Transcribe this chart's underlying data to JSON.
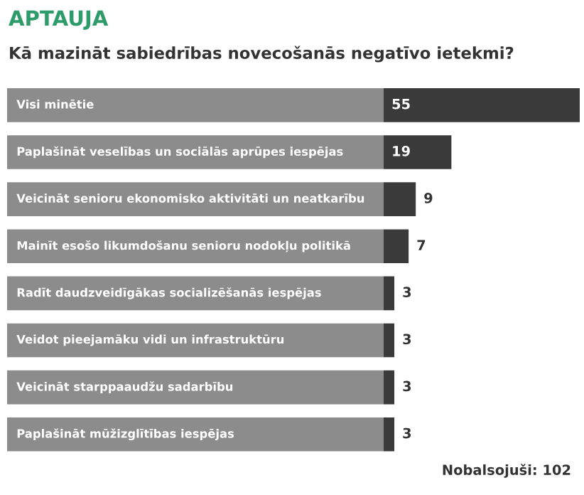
{
  "chart_data": {
    "type": "bar",
    "orientation": "horizontal",
    "title": "APTAUJA",
    "subtitle": "Kā mazināt sabiedrības novecošanās negatīvo ietekmi?",
    "categories": [
      "Visi minētie",
      "Paplašināt veselības un sociālās aprūpes iespējas",
      "Veicināt senioru ekonomisko aktivitāti un neatkarību",
      "Mainīt esošo likumdošanu senioru nodokļu politikā",
      "Radīt daudzveidīgākas socializēšanās iespējas",
      "Veidot pieejamāku vidi un infrastruktūru",
      "Veicināt starppaaudžu sadarbību",
      "Paplašināt mūžizglītības iespējas"
    ],
    "values": [
      55,
      19,
      9,
      7,
      3,
      3,
      3,
      3
    ],
    "color": "#3a3a3a",
    "data_labels": true,
    "annotations": [
      "Nobalsojuši: 102"
    ]
  }
}
